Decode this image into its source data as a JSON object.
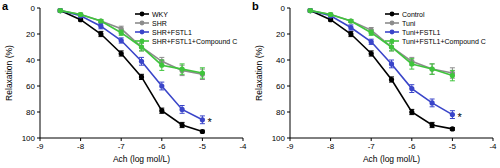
{
  "chart_data": [
    {
      "type": "line",
      "title": "a",
      "x_label": "Ach (log mol/L)",
      "y_label": "Relaxation (%)",
      "x": [
        -8.5,
        -8,
        -7.5,
        -7,
        -6.5,
        -6,
        -5.5,
        -5
      ],
      "xlim": [
        -9,
        -4
      ],
      "xticks": [
        -9,
        -8,
        -7,
        -6,
        -5,
        -4
      ],
      "ylim": [
        100,
        0
      ],
      "yticks": [
        0,
        20,
        40,
        60,
        80,
        100
      ],
      "grid": false,
      "legend": "upper right",
      "marker": "circle",
      "series": [
        {
          "name": "WKY",
          "color": "#000000",
          "values": [
            2,
            9,
            20,
            35,
            53,
            79,
            90,
            95
          ],
          "error": [
            1,
            1,
            2,
            2,
            2,
            2,
            2,
            1
          ]
        },
        {
          "name": "SHR",
          "color": "#8c8c8c",
          "values": [
            2,
            5,
            10,
            16,
            30,
            41,
            48,
            51
          ],
          "error": [
            1,
            1,
            1,
            2,
            3,
            3,
            4,
            4
          ]
        },
        {
          "name": "SHR+FSTL1",
          "color": "#3a45c9",
          "values": [
            2,
            6,
            14,
            25,
            41,
            60,
            78,
            86
          ],
          "error": [
            1,
            1,
            2,
            2,
            3,
            3,
            3,
            3
          ]
        },
        {
          "name": "SHR+FSTL1+Compound C",
          "color": "#3fc43c",
          "values": [
            2,
            5,
            10,
            19,
            30,
            44,
            47,
            50
          ],
          "error": [
            1,
            1,
            1,
            2,
            3,
            4,
            4,
            4
          ]
        }
      ],
      "annotations": [
        {
          "text": "*",
          "x": -5,
          "y": 86
        }
      ]
    },
    {
      "type": "line",
      "title": "b",
      "x_label": "Ach (log mol/L)",
      "y_label": "Relaxation (%)",
      "x": [
        -8.5,
        -8,
        -7.5,
        -7,
        -6.5,
        -6,
        -5.5,
        -5
      ],
      "xlim": [
        -9,
        -4
      ],
      "xticks": [
        -9,
        -8,
        -7,
        -6,
        -5,
        -4
      ],
      "ylim": [
        100,
        0
      ],
      "yticks": [
        0,
        20,
        40,
        60,
        80,
        100
      ],
      "grid": false,
      "legend": "upper right",
      "marker": "circle",
      "series": [
        {
          "name": "Control",
          "color": "#000000",
          "values": [
            2,
            9,
            20,
            35,
            55,
            80,
            90,
            93
          ],
          "error": [
            1,
            1,
            2,
            2,
            2,
            2,
            2,
            1
          ]
        },
        {
          "name": "Tuni",
          "color": "#8c8c8c",
          "values": [
            2,
            5,
            10,
            17,
            30,
            41,
            47,
            50
          ],
          "error": [
            1,
            1,
            1,
            2,
            3,
            3,
            4,
            4
          ]
        },
        {
          "name": "Tuni+FSTL1",
          "color": "#3a45c9",
          "values": [
            2,
            6,
            15,
            26,
            43,
            62,
            73,
            82
          ],
          "error": [
            1,
            1,
            2,
            2,
            3,
            3,
            3,
            3
          ]
        },
        {
          "name": "Tuni+FSTL1+Compound C",
          "color": "#3fc43c",
          "values": [
            2,
            5,
            10,
            19,
            30,
            43,
            47,
            52
          ],
          "error": [
            1,
            1,
            1,
            2,
            3,
            4,
            4,
            4
          ]
        }
      ],
      "annotations": [
        {
          "text": "*",
          "x": -5,
          "y": 82
        }
      ]
    }
  ]
}
